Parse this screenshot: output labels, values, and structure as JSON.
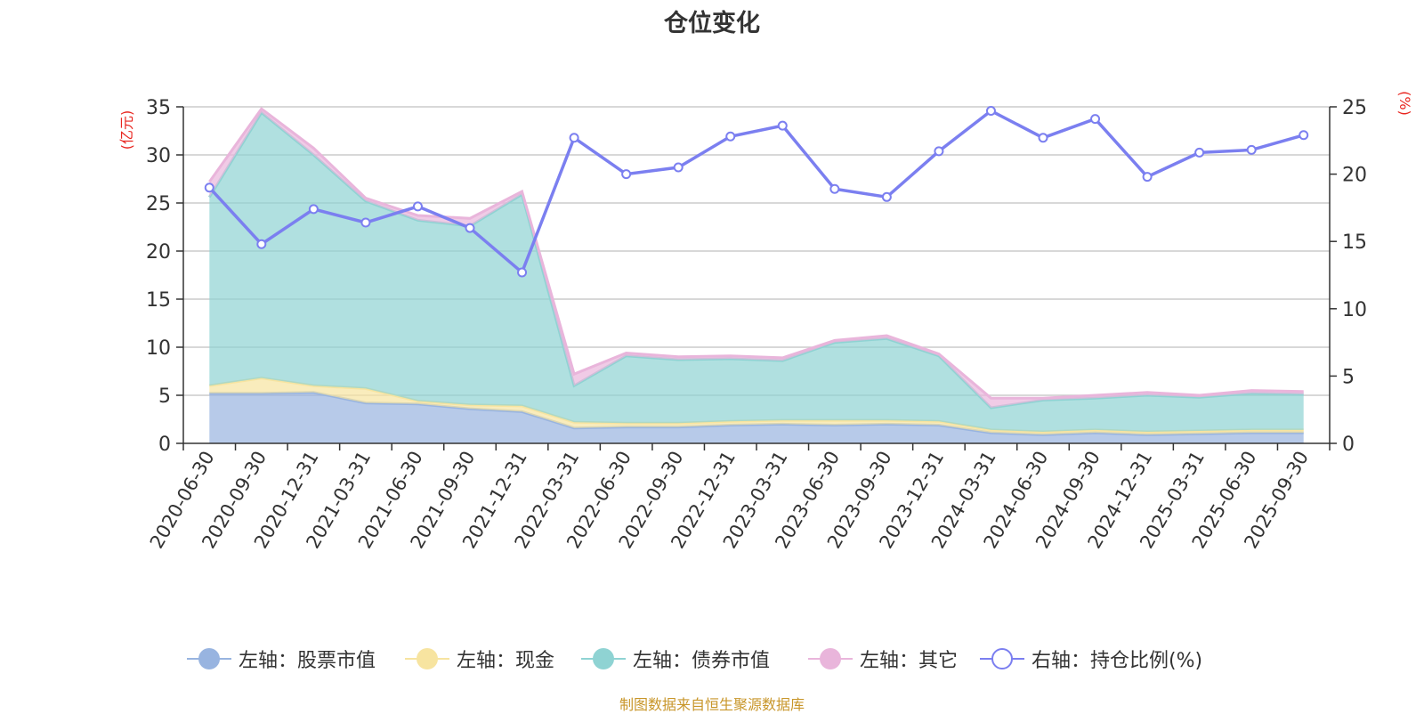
{
  "chart_data": {
    "type": "area",
    "title": "仓位变化",
    "left_axis_unit": "(亿元)",
    "right_axis_unit": "(%)",
    "left_ylim": [
      0,
      35
    ],
    "left_ticks": [
      0,
      5,
      10,
      15,
      20,
      25,
      30,
      35
    ],
    "right_ylim": [
      0,
      25
    ],
    "right_ticks": [
      0,
      5,
      10,
      15,
      20,
      25
    ],
    "categories": [
      "2020-06-30",
      "2020-09-30",
      "2020-12-31",
      "2021-03-31",
      "2021-06-30",
      "2021-09-30",
      "2021-12-31",
      "2022-03-31",
      "2022-06-30",
      "2022-09-30",
      "2022-12-31",
      "2023-03-31",
      "2023-06-30",
      "2023-09-30",
      "2023-12-31",
      "2024-03-31",
      "2024-06-30",
      "2024-09-30",
      "2024-12-31",
      "2025-03-31",
      "2025-06-30",
      "2025-09-30"
    ],
    "stacked_series": [
      {
        "name": "左轴：股票市值",
        "axis": "left",
        "color": "#98b4e0",
        "values": [
          5.2,
          5.2,
          5.3,
          4.2,
          4.1,
          3.6,
          3.3,
          1.6,
          1.7,
          1.7,
          1.9,
          2.0,
          1.9,
          2.0,
          1.9,
          1.1,
          0.9,
          1.1,
          0.9,
          1.0,
          1.1,
          1.1
        ]
      },
      {
        "name": "左轴：现金",
        "axis": "left",
        "color": "#f7e4a0",
        "values": [
          0.8,
          1.6,
          0.7,
          1.5,
          0.3,
          0.4,
          0.6,
          0.6,
          0.4,
          0.4,
          0.4,
          0.4,
          0.5,
          0.4,
          0.4,
          0.3,
          0.3,
          0.3,
          0.3,
          0.3,
          0.3,
          0.3
        ]
      },
      {
        "name": "左轴：债券市值",
        "axis": "left",
        "color": "#8fd3d3",
        "values": [
          19.6,
          27.6,
          24.0,
          19.5,
          18.8,
          18.6,
          22.0,
          3.8,
          7.0,
          6.6,
          6.5,
          6.2,
          8.1,
          8.5,
          6.8,
          2.3,
          3.3,
          3.3,
          3.8,
          3.5,
          3.8,
          3.7
        ]
      },
      {
        "name": "左轴：其它",
        "axis": "left",
        "color": "#e9b5db",
        "values": [
          1.6,
          0.4,
          0.7,
          0.3,
          0.5,
          0.8,
          0.3,
          1.2,
          0.3,
          0.3,
          0.3,
          0.3,
          0.2,
          0.3,
          0.2,
          1.0,
          0.2,
          0.3,
          0.3,
          0.2,
          0.3,
          0.3
        ]
      }
    ],
    "line_series": {
      "name": "右轴：持仓比例(%)",
      "axis": "right",
      "color": "#7b7ff0",
      "values": [
        19.0,
        14.8,
        17.4,
        16.4,
        17.6,
        16.0,
        12.7,
        22.7,
        20.0,
        20.5,
        22.8,
        23.6,
        18.9,
        18.3,
        21.7,
        24.7,
        22.7,
        24.1,
        19.8,
        21.6,
        21.8,
        22.9
      ]
    },
    "source": "制图数据来自恒生聚源数据库"
  }
}
